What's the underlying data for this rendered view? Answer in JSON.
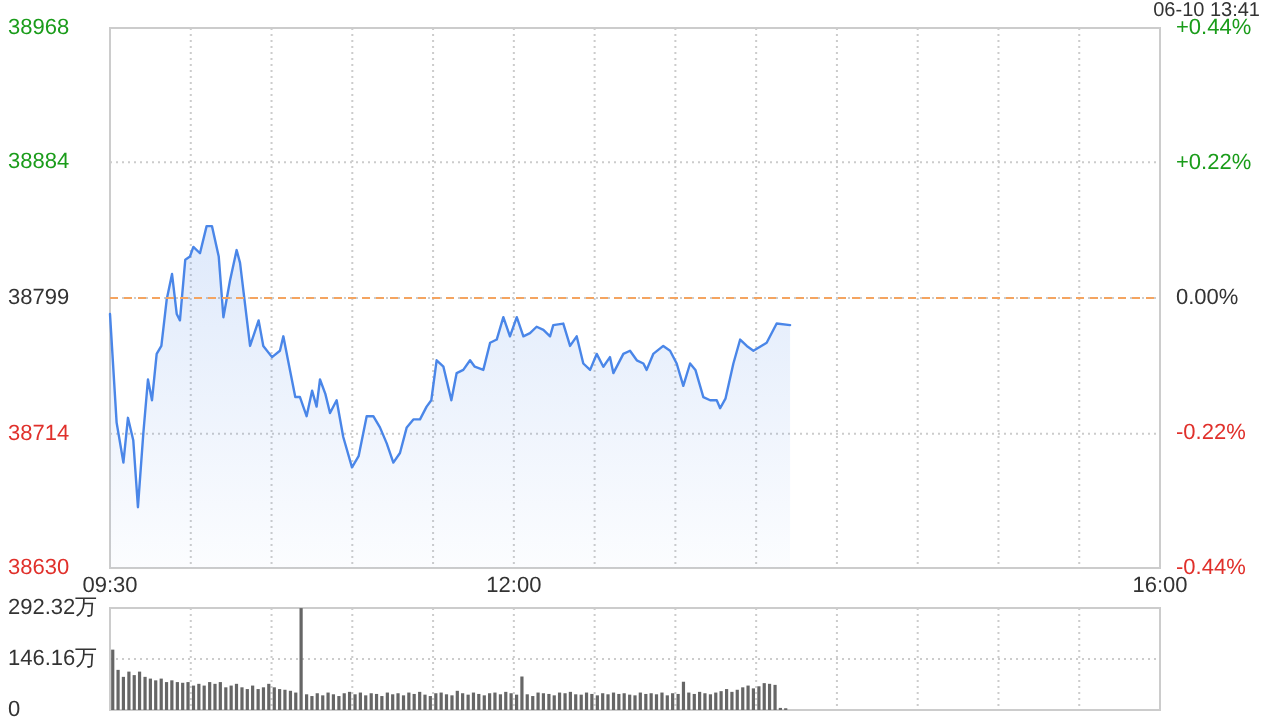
{
  "chart_data": [
    {
      "type": "area",
      "annotations": [
        "06-10 13:41"
      ],
      "xlim": [
        9.5,
        16
      ],
      "xticks": [
        {
          "value": 9.5,
          "label": "09:30"
        },
        {
          "value": 10,
          "label": null
        },
        {
          "value": 10.5,
          "label": null
        },
        {
          "value": 11,
          "label": null
        },
        {
          "value": 11.5,
          "label": null
        },
        {
          "value": 12,
          "label": "12:00"
        },
        {
          "value": 12.5,
          "label": null
        },
        {
          "value": 13,
          "label": null
        },
        {
          "value": 13.5,
          "label": null
        },
        {
          "value": 14,
          "label": null
        },
        {
          "value": 14.5,
          "label": null
        },
        {
          "value": 15,
          "label": null
        },
        {
          "value": 15.5,
          "label": null
        },
        {
          "value": 16,
          "label": "16:00"
        }
      ],
      "ylim": [
        38630,
        38968
      ],
      "yticks": [
        38630,
        38714,
        38799,
        38884,
        38968
      ],
      "y2lim": [
        -0.44,
        0.44
      ],
      "y2ticks": [
        {
          "value": -0.44,
          "label": "-0.44%"
        },
        {
          "value": -0.22,
          "label": "-0.22%"
        },
        {
          "value": 0,
          "label": "0.00%"
        },
        {
          "value": 0.22,
          "label": "+0.22%"
        },
        {
          "value": 0.44,
          "label": "+0.44%"
        }
      ],
      "ref_lines": [
        {
          "axis": "y",
          "value": 38799,
          "color": "#f4a460",
          "line_style": "dashed"
        }
      ],
      "grid": true,
      "series": [
        {
          "color": "#4a86e8",
          "x": [
            9.5,
            9.541,
            9.583,
            9.611,
            9.644,
            9.673,
            9.706,
            9.735,
            9.76,
            9.789,
            9.818,
            9.851,
            9.884,
            9.913,
            9.933,
            9.966,
            9.995,
            10.016,
            10.057,
            10.098,
            10.131,
            10.173,
            10.202,
            10.243,
            10.284,
            10.305,
            10.367,
            10.42,
            10.449,
            10.503,
            10.552,
            10.573,
            10.602,
            10.647,
            10.676,
            10.717,
            10.751,
            10.779,
            10.8,
            10.833,
            10.862,
            10.903,
            10.944,
            10.998,
            11.039,
            11.089,
            11.13,
            11.171,
            11.213,
            11.254,
            11.295,
            11.337,
            11.378,
            11.419,
            11.46,
            11.489,
            11.522,
            11.564,
            11.613,
            11.646,
            11.687,
            11.729,
            11.758,
            11.811,
            11.853,
            11.894,
            11.935,
            11.976,
            12.018,
            12.059,
            12.1,
            12.141,
            12.183,
            12.224,
            12.244,
            12.306,
            12.348,
            12.389,
            12.43,
            12.472,
            12.513,
            12.554,
            12.595,
            12.616,
            12.678,
            12.719,
            12.761,
            12.802,
            12.822,
            12.863,
            12.925,
            12.967,
            13.008,
            13.049,
            13.091,
            13.124,
            13.173,
            13.215,
            13.256,
            13.277,
            13.31,
            13.359,
            13.401,
            13.442,
            13.483,
            13.565,
            13.627,
            13.71
          ],
          "values": [
            38789,
            38721,
            38696,
            38724,
            38710,
            38668,
            38714,
            38748,
            38735,
            38764,
            38769,
            38798,
            38814,
            38789,
            38785,
            38823,
            38825,
            38831,
            38827,
            38844,
            38844,
            38825,
            38787,
            38810,
            38829,
            38821,
            38769,
            38785,
            38769,
            38762,
            38766,
            38775,
            38760,
            38737,
            38737,
            38725,
            38741,
            38731,
            38748,
            38739,
            38727,
            38735,
            38712,
            38693,
            38700,
            38725,
            38725,
            38718,
            38708,
            38696,
            38702,
            38718,
            38723,
            38723,
            38731,
            38735,
            38760,
            38756,
            38735,
            38752,
            38754,
            38760,
            38756,
            38754,
            38771,
            38773,
            38787,
            38775,
            38787,
            38775,
            38777,
            38781,
            38779,
            38775,
            38782,
            38783,
            38769,
            38775,
            38758,
            38754,
            38764,
            38756,
            38762,
            38752,
            38764,
            38766,
            38760,
            38758,
            38754,
            38764,
            38769,
            38766,
            38758,
            38744,
            38758,
            38754,
            38737,
            38735,
            38735,
            38730,
            38736,
            38758,
            38773,
            38769,
            38766,
            38771,
            38783,
            38782
          ]
        }
      ]
    },
    {
      "type": "bar",
      "tick_labels": "y",
      "grid": true,
      "xlim": [
        9.5,
        16
      ],
      "xticks": [
        9.5,
        10,
        10.5,
        11,
        11.5,
        12,
        12.5,
        13,
        13.5,
        14,
        14.5,
        15,
        15.5,
        16
      ],
      "ylim": [
        0,
        292.32
      ],
      "yticks": [
        0,
        {
          "value": 146.16,
          "label": "146.16万"
        },
        {
          "value": 292.32,
          "label": "292.32万"
        }
      ],
      "series": [
        {
          "color": "#666666",
          "x": [
            9.517,
            9.55,
            9.583,
            9.617,
            9.65,
            9.683,
            9.717,
            9.75,
            9.783,
            9.817,
            9.85,
            9.883,
            9.917,
            9.95,
            9.983,
            10.017,
            10.05,
            10.083,
            10.117,
            10.15,
            10.183,
            10.217,
            10.25,
            10.283,
            10.317,
            10.35,
            10.383,
            10.417,
            10.45,
            10.483,
            10.517,
            10.55,
            10.583,
            10.617,
            10.65,
            10.683,
            10.717,
            10.75,
            10.783,
            10.817,
            10.85,
            10.883,
            10.917,
            10.95,
            10.983,
            11.017,
            11.05,
            11.083,
            11.117,
            11.15,
            11.183,
            11.217,
            11.25,
            11.283,
            11.317,
            11.35,
            11.383,
            11.417,
            11.45,
            11.483,
            11.517,
            11.55,
            11.583,
            11.617,
            11.65,
            11.683,
            11.717,
            11.75,
            11.783,
            11.817,
            11.85,
            11.883,
            11.917,
            11.95,
            11.983,
            12.017,
            12.05,
            12.083,
            12.117,
            12.15,
            12.183,
            12.217,
            12.25,
            12.283,
            12.317,
            12.35,
            12.383,
            12.417,
            12.45,
            12.483,
            12.517,
            12.55,
            12.583,
            12.617,
            12.65,
            12.683,
            12.717,
            12.75,
            12.783,
            12.817,
            12.85,
            12.883,
            12.917,
            12.95,
            12.983,
            13.017,
            13.05,
            13.083,
            13.117,
            13.15,
            13.183,
            13.217,
            13.25,
            13.283,
            13.317,
            13.35,
            13.383,
            13.417,
            13.45,
            13.483,
            13.517,
            13.55,
            13.583,
            13.617,
            13.65,
            13.683
          ],
          "values": [
            173,
            115,
            95,
            110,
            100,
            110,
            95,
            90,
            85,
            90,
            80,
            85,
            80,
            78,
            80,
            70,
            75,
            70,
            80,
            75,
            80,
            65,
            70,
            75,
            65,
            60,
            70,
            60,
            65,
            75,
            65,
            60,
            58,
            55,
            50,
            292,
            45,
            40,
            48,
            42,
            50,
            45,
            40,
            48,
            52,
            45,
            50,
            42,
            48,
            46,
            40,
            50,
            45,
            48,
            42,
            50,
            46,
            52,
            44,
            40,
            48,
            50,
            45,
            42,
            55,
            48,
            44,
            50,
            46,
            42,
            48,
            50,
            45,
            52,
            48,
            44,
            96,
            45,
            40,
            50,
            48,
            46,
            42,
            50,
            48,
            52,
            45,
            44,
            50,
            46,
            42,
            48,
            45,
            50,
            46,
            48,
            44,
            42,
            50,
            46,
            48,
            45,
            50,
            42,
            48,
            46,
            81,
            50,
            46,
            52,
            48,
            45,
            50,
            54,
            60,
            52,
            58,
            65,
            70,
            62,
            68,
            77,
            75,
            72,
            6,
            5
          ]
        }
      ]
    }
  ]
}
